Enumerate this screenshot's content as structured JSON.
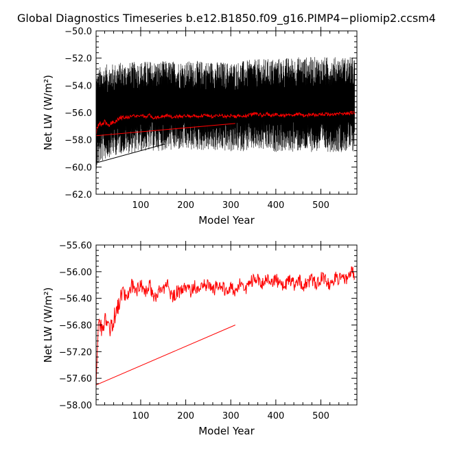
{
  "figure": {
    "title": "Global Diagnostics Timeseries b.e12.B1850.f09_g16.PIMP4−pliomip2.ccsm4"
  },
  "colors": {
    "annual_mean": "#ff0000",
    "monthly": "#000000",
    "axes": "#000000"
  },
  "chart_data": [
    {
      "type": "line",
      "panel": "top",
      "xlabel": "Model Year",
      "ylabel": "Net LW (W/m²)",
      "xlim": [
        1,
        580
      ],
      "ylim": [
        -62.0,
        -50.0
      ],
      "x_ticks": [
        100,
        200,
        300,
        400,
        500
      ],
      "y_ticks": [
        "-62.0",
        "-60.0",
        "-58.0",
        "-56.0",
        "-54.0",
        "-52.0",
        "-50.0"
      ],
      "grid": false,
      "series": [
        {
          "style": "dense monthly band",
          "color": "#000000",
          "x": [
            1,
            5,
            10,
            20,
            30,
            40,
            50,
            60,
            80,
            100,
            150,
            200,
            250,
            300,
            350,
            400,
            450,
            500,
            550,
            575
          ],
          "y_upper": [
            -53.0,
            -52.8,
            -52.6,
            -52.5,
            -52.4,
            -52.4,
            -52.3,
            -52.3,
            -52.3,
            -52.2,
            -52.2,
            -52.2,
            -52.2,
            -52.3,
            -52.1,
            -52.0,
            -51.9,
            -51.9,
            -51.9,
            -51.9
          ],
          "y_lower": [
            -60.2,
            -60.0,
            -59.8,
            -59.5,
            -59.3,
            -59.2,
            -59.1,
            -59.0,
            -59.0,
            -58.9,
            -58.8,
            -58.8,
            -58.8,
            -58.9,
            -58.8,
            -58.9,
            -58.9,
            -58.9,
            -58.9,
            -58.9
          ]
        },
        {
          "style": "annual mean",
          "color": "#ff0000",
          "x": [
            1,
            3,
            6,
            10,
            15,
            20,
            25,
            30,
            40,
            50,
            60,
            70,
            80,
            90,
            100,
            110,
            120,
            130,
            140,
            150,
            160,
            170,
            180,
            190,
            200,
            210,
            220,
            230,
            240,
            250,
            260,
            270,
            280,
            290,
            300,
            310,
            320,
            330,
            340,
            350,
            360,
            370,
            380,
            390,
            400,
            410,
            420,
            430,
            440,
            450,
            460,
            470,
            480,
            490,
            500,
            510,
            520,
            530,
            540,
            550,
            560,
            570,
            575
          ],
          "y": [
            -57.6,
            -57.2,
            -56.9,
            -56.8,
            -56.9,
            -56.7,
            -56.8,
            -56.9,
            -56.7,
            -56.5,
            -56.3,
            -56.4,
            -56.2,
            -56.3,
            -56.2,
            -56.3,
            -56.2,
            -56.4,
            -56.3,
            -56.3,
            -56.2,
            -56.4,
            -56.3,
            -56.3,
            -56.2,
            -56.3,
            -56.2,
            -56.3,
            -56.2,
            -56.2,
            -56.3,
            -56.2,
            -56.2,
            -56.3,
            -56.2,
            -56.3,
            -56.2,
            -56.3,
            -56.2,
            -56.1,
            -56.1,
            -56.2,
            -56.1,
            -56.2,
            -56.1,
            -56.2,
            -56.2,
            -56.1,
            -56.2,
            -56.1,
            -56.2,
            -56.2,
            -56.1,
            -56.2,
            -56.1,
            -56.1,
            -56.2,
            -56.1,
            -56.1,
            -56.1,
            -56.1,
            -56.0,
            -56.1
          ]
        },
        {
          "style": "trend (black)",
          "color": "#000000",
          "x": [
            1,
            155
          ],
          "y": [
            -59.7,
            -58.3
          ]
        },
        {
          "style": "trend (red)",
          "color": "#ff0000",
          "x": [
            1,
            310
          ],
          "y": [
            -57.7,
            -56.8
          ]
        }
      ]
    },
    {
      "type": "line",
      "panel": "bottom",
      "xlabel": "Model Year",
      "ylabel": "Net LW (W/m²)",
      "xlim": [
        1,
        580
      ],
      "ylim": [
        -58.0,
        -55.6
      ],
      "x_ticks": [
        100,
        200,
        300,
        400,
        500
      ],
      "y_ticks": [
        "-58.00",
        "-57.60",
        "-57.20",
        "-56.80",
        "-56.40",
        "-56.00",
        "-55.60"
      ],
      "grid": false,
      "series": [
        {
          "style": "annual mean",
          "color": "#ff0000",
          "x": [
            1,
            3,
            6,
            10,
            15,
            20,
            25,
            30,
            40,
            50,
            60,
            70,
            80,
            90,
            100,
            110,
            120,
            130,
            140,
            150,
            160,
            170,
            180,
            190,
            200,
            210,
            220,
            230,
            240,
            250,
            260,
            270,
            280,
            290,
            300,
            310,
            320,
            330,
            340,
            350,
            360,
            370,
            380,
            390,
            400,
            410,
            420,
            430,
            440,
            450,
            460,
            470,
            480,
            490,
            500,
            510,
            520,
            530,
            540,
            550,
            560,
            570,
            575
          ],
          "y": [
            -57.6,
            -57.2,
            -56.9,
            -56.8,
            -56.9,
            -56.7,
            -56.8,
            -56.9,
            -56.7,
            -56.5,
            -56.3,
            -56.4,
            -56.2,
            -56.3,
            -56.2,
            -56.3,
            -56.2,
            -56.4,
            -56.3,
            -56.3,
            -56.2,
            -56.4,
            -56.3,
            -56.3,
            -56.2,
            -56.3,
            -56.2,
            -56.3,
            -56.2,
            -56.2,
            -56.3,
            -56.2,
            -56.2,
            -56.3,
            -56.2,
            -56.3,
            -56.2,
            -56.3,
            -56.2,
            -56.1,
            -56.1,
            -56.2,
            -56.1,
            -56.2,
            -56.1,
            -56.2,
            -56.2,
            -56.1,
            -56.2,
            -56.1,
            -56.2,
            -56.2,
            -56.1,
            -56.2,
            -56.1,
            -56.1,
            -56.2,
            -56.1,
            -56.1,
            -56.1,
            -56.1,
            -56.0,
            -56.1
          ]
        },
        {
          "style": "trend (red)",
          "color": "#ff0000",
          "x": [
            1,
            310
          ],
          "y": [
            -57.7,
            -56.8
          ]
        }
      ]
    }
  ]
}
